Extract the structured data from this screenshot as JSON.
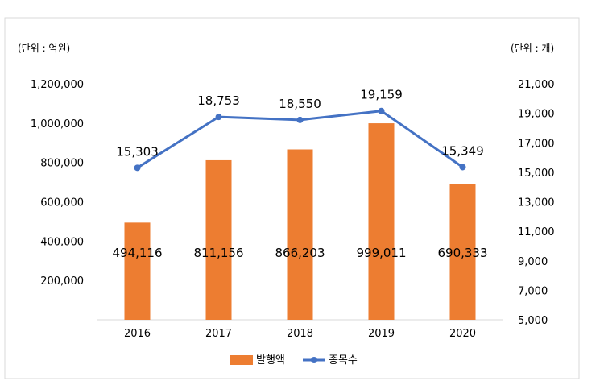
{
  "chart_data": {
    "type": "bar",
    "categories": [
      "2016",
      "2017",
      "2018",
      "2019",
      "2020"
    ],
    "left_unit_label": "(단위 : 억원)",
    "right_unit_label": "(단위 : 개)",
    "y_left": {
      "min": 0,
      "max": 1200000,
      "ticks": [
        "–",
        "200,000",
        "400,000",
        "600,000",
        "800,000",
        "1,000,000",
        "1,200,000"
      ]
    },
    "y_right": {
      "min": 5000,
      "max": 21000,
      "ticks": [
        "5,000",
        "7,000",
        "9,000",
        "11,000",
        "13,000",
        "15,000",
        "17,000",
        "19,000",
        "21,000"
      ]
    },
    "series": [
      {
        "name": "발행액",
        "type": "bar",
        "axis": "left",
        "color": "#ED7D31",
        "values": [
          494116,
          811156,
          866203,
          999011,
          690333
        ],
        "labels": [
          "494,116",
          "811,156",
          "866,203",
          "999,011",
          "690,333"
        ]
      },
      {
        "name": "종목수",
        "type": "line",
        "axis": "right",
        "color": "#4472C4",
        "values": [
          15303,
          18753,
          18550,
          19159,
          15349
        ],
        "labels": [
          "15,303",
          "18,753",
          "18,550",
          "19,159",
          "15,349"
        ]
      }
    ],
    "legend_position": "bottom",
    "grid": false
  }
}
